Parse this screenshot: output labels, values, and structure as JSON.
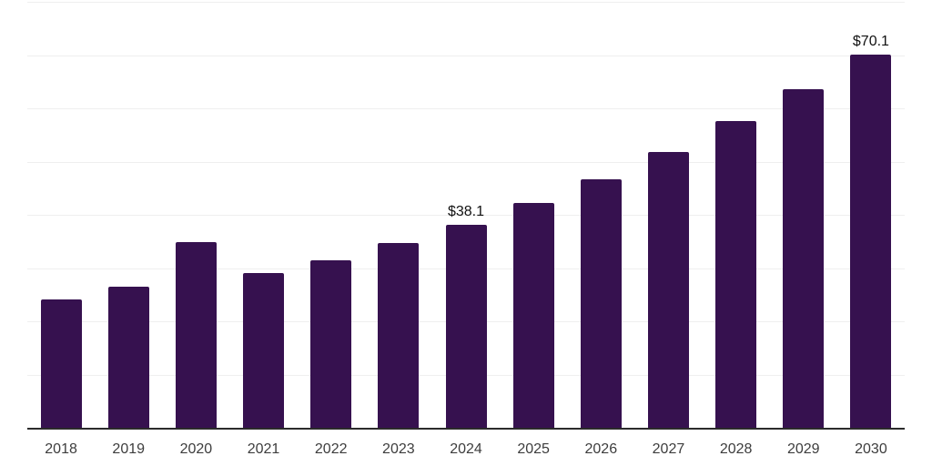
{
  "chart_data": {
    "type": "bar",
    "title": "",
    "xlabel": "",
    "ylabel": "",
    "categories": [
      "2018",
      "2019",
      "2020",
      "2021",
      "2022",
      "2023",
      "2024",
      "2025",
      "2026",
      "2027",
      "2028",
      "2029",
      "2030"
    ],
    "values": [
      24.1,
      26.5,
      34.9,
      29.1,
      31.5,
      34.7,
      38.1,
      42.2,
      46.7,
      51.8,
      57.6,
      63.6,
      70.1
    ],
    "point_labels": {
      "2024": "$38.1",
      "2030": "$70.1"
    },
    "ylim": [
      0,
      80
    ],
    "grid_step": 10,
    "grid": "horizontal-only",
    "legend": "none",
    "y_axis_tick_labels": "none",
    "colors": {
      "bar": "#36114f",
      "axis": "#2b2b2b",
      "gridline": "#efefef",
      "tick_label": "#3d3d3d",
      "value_label": "#111111",
      "background": "#ffffff"
    }
  }
}
